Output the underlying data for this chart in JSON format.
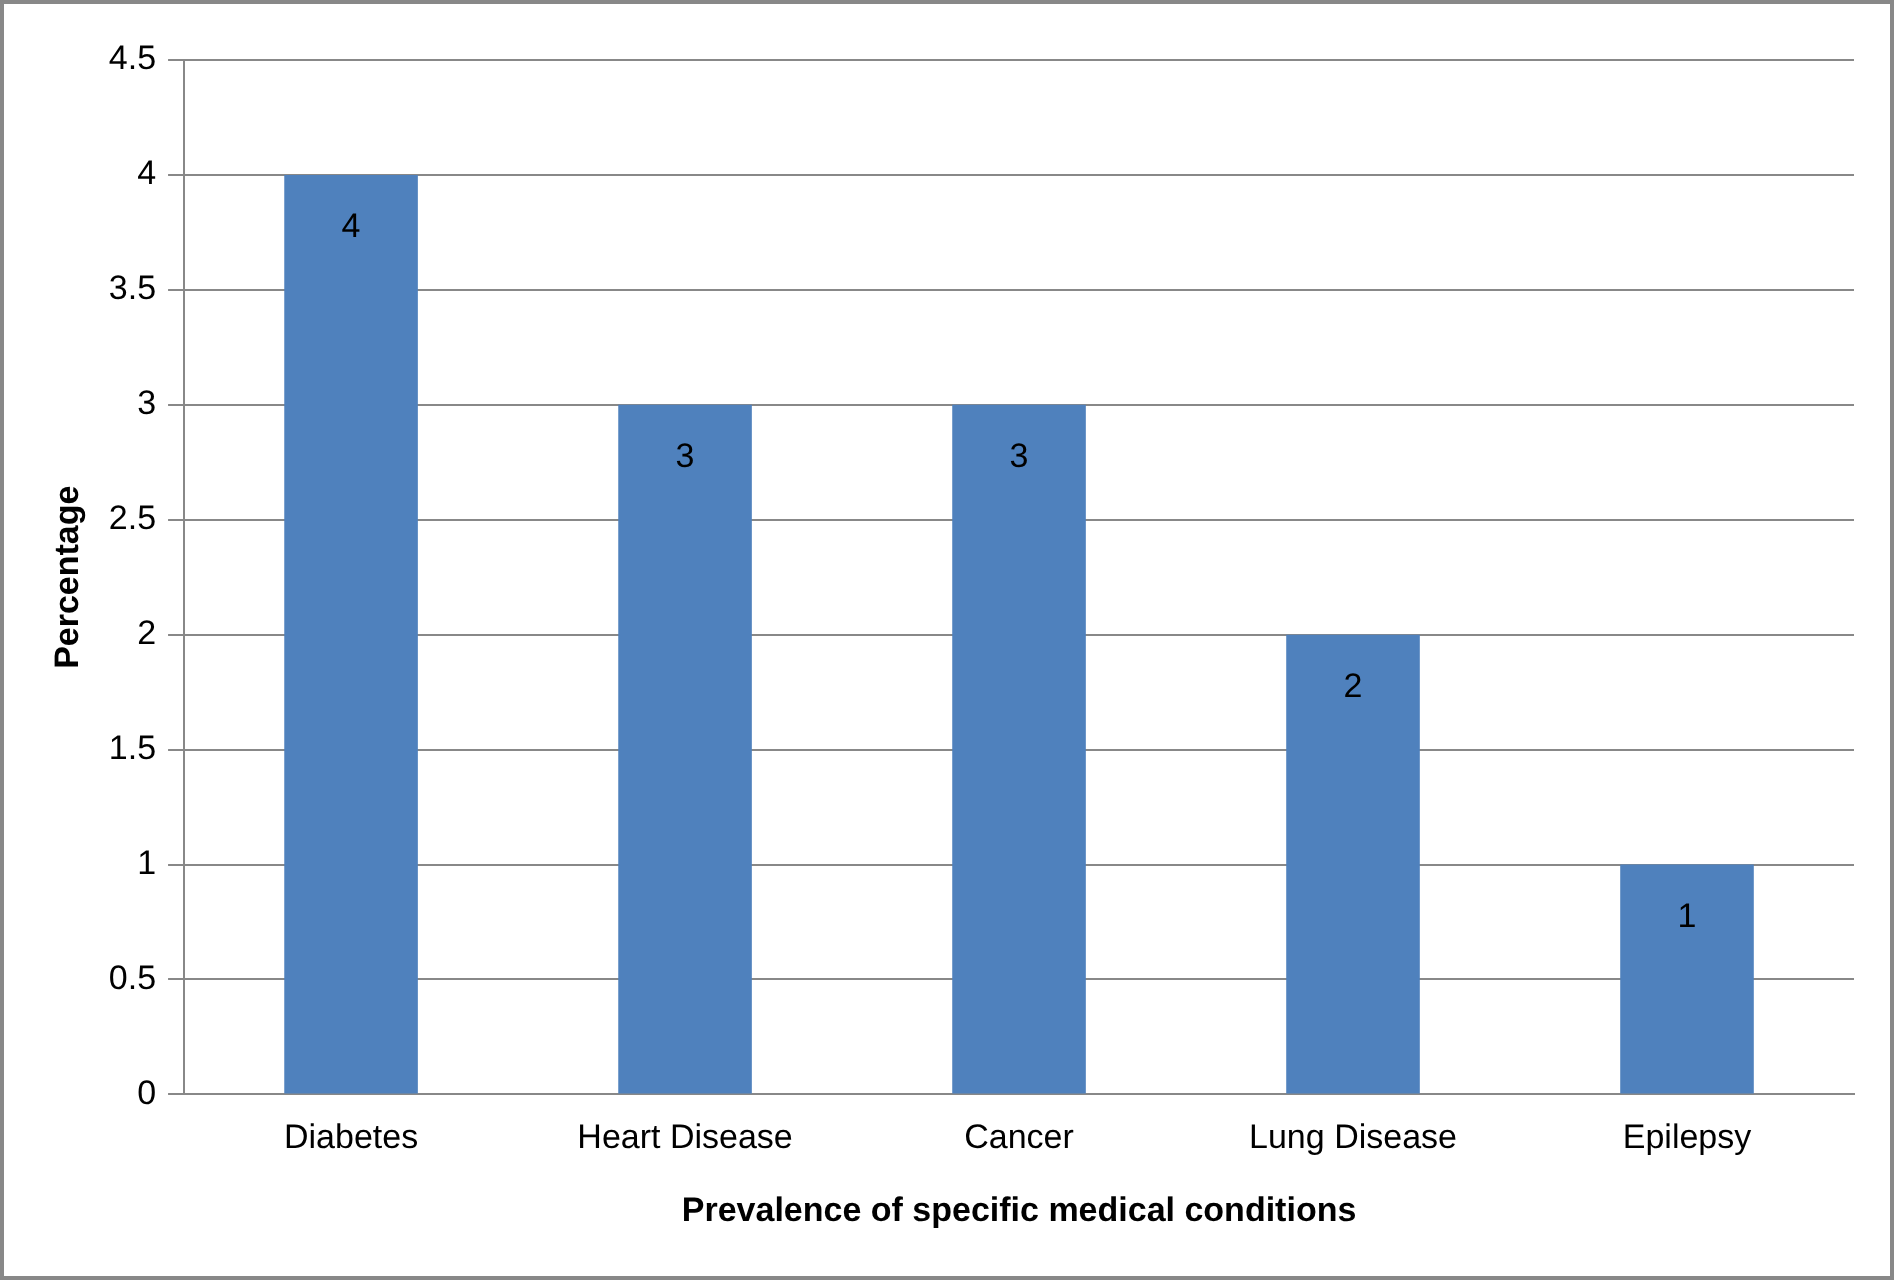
{
  "chart_data": {
    "type": "bar",
    "xlabel": "Prevalence of specific medical conditions",
    "ylabel": "Percentage",
    "categories": [
      "Diabetes",
      "Heart Disease",
      "Cancer",
      "Lung Disease",
      "Epilepsy"
    ],
    "values": [
      4,
      3,
      3,
      2,
      1
    ],
    "color": "#4f81bd",
    "ylim": [
      0,
      4.5
    ],
    "yticks": [
      0,
      0.5,
      1,
      1.5,
      2,
      2.5,
      3,
      3.5,
      4,
      4.5
    ],
    "grid": "y",
    "legend": false,
    "data_labels": true
  }
}
